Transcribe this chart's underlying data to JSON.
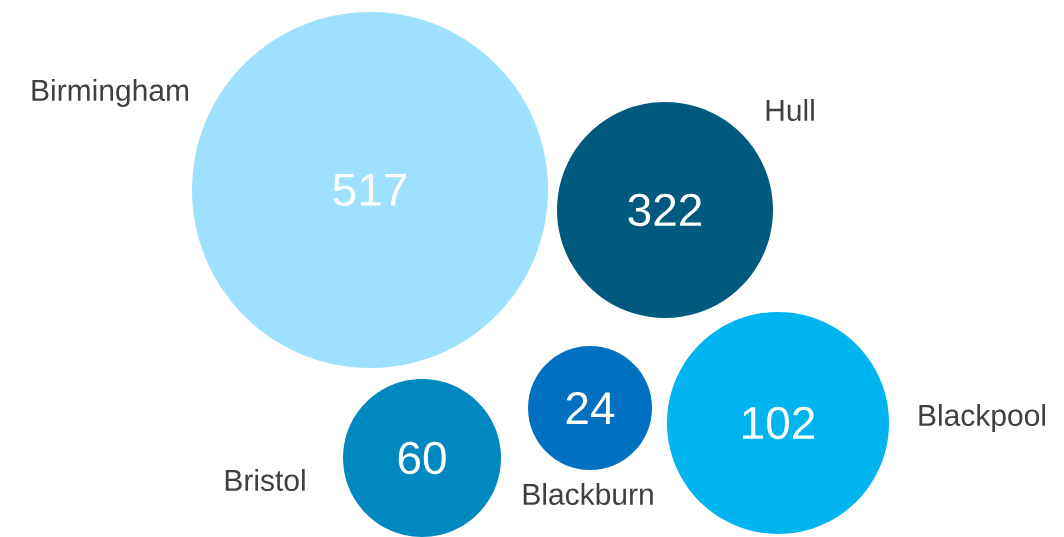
{
  "chart_data": {
    "type": "other",
    "categories": [
      "Birmingham",
      "Hull",
      "Bristol",
      "Blackburn",
      "Blackpool"
    ],
    "values": [
      517,
      322,
      60,
      24,
      102
    ],
    "colors": [
      "#9de0ff",
      "#005a7f",
      "#0088c0",
      "#0070c0",
      "#00b4f0"
    ],
    "data_labels": true
  }
}
